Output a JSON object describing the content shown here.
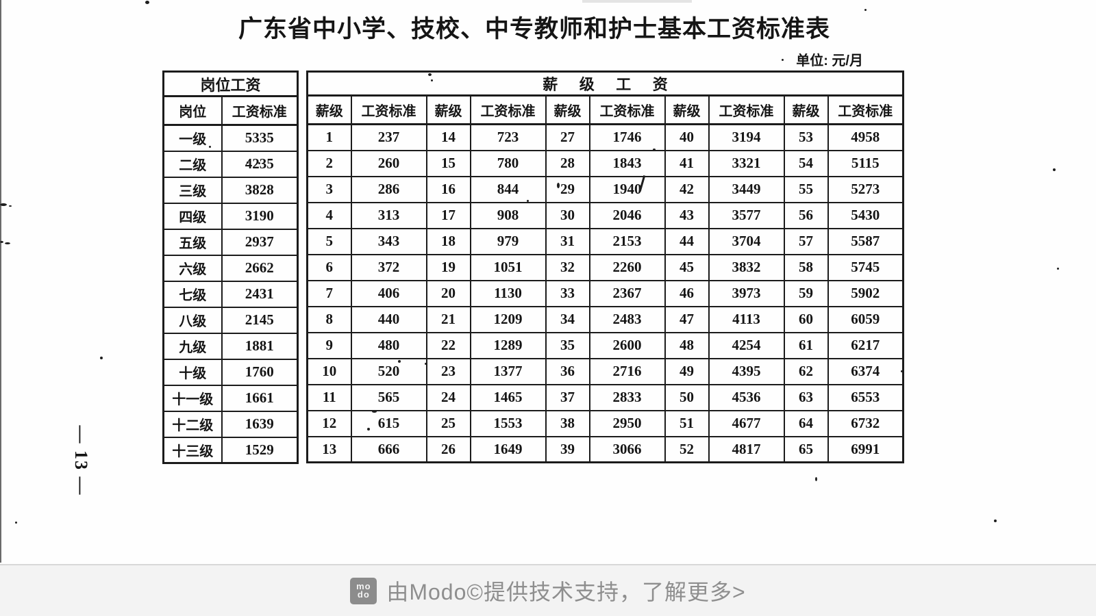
{
  "doc": {
    "title": "广东省中小学、技校、中专教师和护士基本工资标准表",
    "unit_label": "单位: 元/月",
    "page_number": "— 13 —"
  },
  "position_table": {
    "title": "岗位工资",
    "columns": [
      "岗位",
      "工资标准"
    ],
    "rows": [
      [
        "一级",
        "5335"
      ],
      [
        "二级",
        "4235"
      ],
      [
        "三级",
        "3828"
      ],
      [
        "四级",
        "3190"
      ],
      [
        "五级",
        "2937"
      ],
      [
        "六级",
        "2662"
      ],
      [
        "七级",
        "2431"
      ],
      [
        "八级",
        "2145"
      ],
      [
        "九级",
        "1881"
      ],
      [
        "十级",
        "1760"
      ],
      [
        "十一级",
        "1661"
      ],
      [
        "十二级",
        "1639"
      ],
      [
        "十三级",
        "1529"
      ]
    ]
  },
  "grade_table": {
    "title": "薪 级 工 资",
    "column_pair": [
      "薪级",
      "工资标准"
    ],
    "pair_count": 5,
    "rows": [
      [
        "1",
        "237",
        "14",
        "723",
        "27",
        "1746",
        "40",
        "3194",
        "53",
        "4958"
      ],
      [
        "2",
        "260",
        "15",
        "780",
        "28",
        "1843",
        "41",
        "3321",
        "54",
        "5115"
      ],
      [
        "3",
        "286",
        "16",
        "844",
        "29",
        "1940",
        "42",
        "3449",
        "55",
        "5273"
      ],
      [
        "4",
        "313",
        "17",
        "908",
        "30",
        "2046",
        "43",
        "3577",
        "56",
        "5430"
      ],
      [
        "5",
        "343",
        "18",
        "979",
        "31",
        "2153",
        "44",
        "3704",
        "57",
        "5587"
      ],
      [
        "6",
        "372",
        "19",
        "1051",
        "32",
        "2260",
        "45",
        "3832",
        "58",
        "5745"
      ],
      [
        "7",
        "406",
        "20",
        "1130",
        "33",
        "2367",
        "46",
        "3973",
        "59",
        "5902"
      ],
      [
        "8",
        "440",
        "21",
        "1209",
        "34",
        "2483",
        "47",
        "4113",
        "60",
        "6059"
      ],
      [
        "9",
        "480",
        "22",
        "1289",
        "35",
        "2600",
        "48",
        "4254",
        "61",
        "6217"
      ],
      [
        "10",
        "520",
        "23",
        "1377",
        "36",
        "2716",
        "49",
        "4395",
        "62",
        "6374"
      ],
      [
        "11",
        "565",
        "24",
        "1465",
        "37",
        "2833",
        "50",
        "4536",
        "63",
        "6553"
      ],
      [
        "12",
        "615",
        "25",
        "1553",
        "38",
        "2950",
        "51",
        "4677",
        "64",
        "6732"
      ],
      [
        "13",
        "666",
        "26",
        "1649",
        "39",
        "3066",
        "52",
        "4817",
        "65",
        "6991"
      ]
    ]
  },
  "footer": {
    "logo_top": "mo",
    "logo_bottom": "do",
    "text": "由Modo©提供技术支持，了解更多>"
  },
  "colors": {
    "table_line": "#1b1b1b",
    "footer_bg": "#f3f3f3",
    "footer_divider": "#d8d8d8",
    "footer_text": "#8e8e8e",
    "logo_bg": "#8c8c8c"
  }
}
